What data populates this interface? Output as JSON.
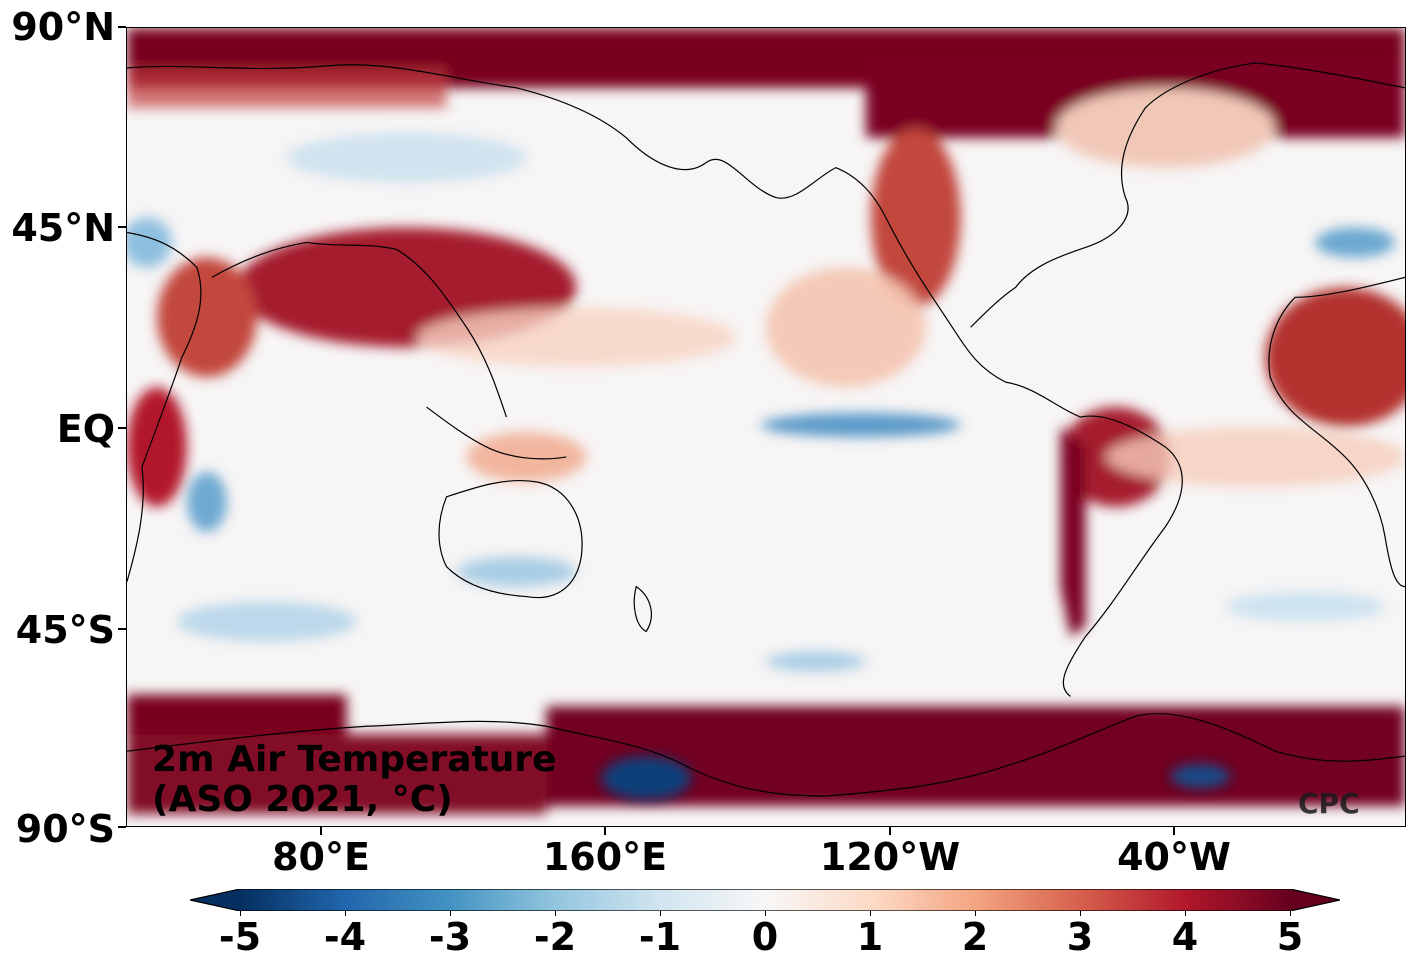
{
  "title_line1": "2m Air Temperature",
  "title_line2": "(ASO 2021, °C)",
  "watermark": "CPC",
  "lat_labels": [
    "90°N",
    "45°N",
    "EQ",
    "45°S",
    "90°S"
  ],
  "lon_labels": [
    "80°E",
    "160°E",
    "120°W",
    "40°W"
  ],
  "colorbar": {
    "labels": [
      "-5",
      "-4",
      "-3",
      "-2",
      "-1",
      "0",
      "1",
      "2",
      "3",
      "4",
      "5"
    ],
    "min": -5,
    "max": 5,
    "colors": [
      "#053061",
      "#2166ac",
      "#4393c3",
      "#92c5de",
      "#d1e5f0",
      "#f7f7f7",
      "#fddbc7",
      "#f4a582",
      "#d6604d",
      "#b2182b",
      "#67001f"
    ]
  }
}
